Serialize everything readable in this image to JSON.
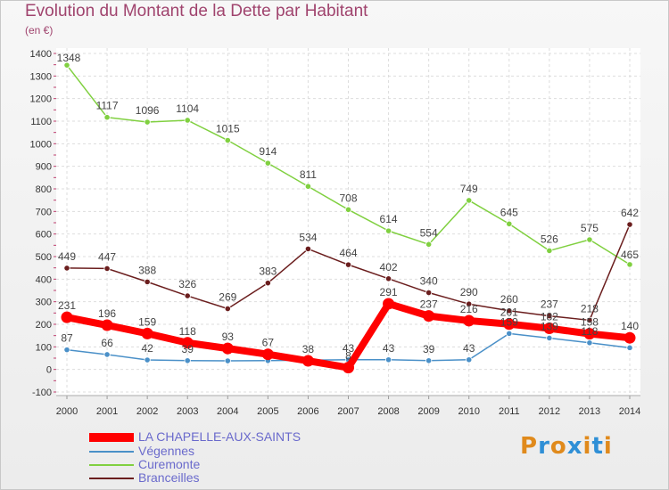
{
  "header": {
    "title": "Evolution du Montant de la Dette par Habitant",
    "subtitle": "(en €)"
  },
  "logo": {
    "text": "Proxiti",
    "colors": [
      "#e08a1c",
      "#2f8fd6",
      "#e08a1c",
      "#2f8fd6",
      "#e08a1c",
      "#2f8fd6",
      "#e08a1c"
    ]
  },
  "chart_data": {
    "type": "line",
    "x": [
      "2000",
      "2001",
      "2002",
      "2003",
      "2004",
      "2005",
      "2006",
      "2007",
      "2008",
      "2009",
      "2010",
      "2011",
      "2012",
      "2013",
      "2014"
    ],
    "ylim": [
      -100,
      1400
    ],
    "yticks": [
      -100,
      0,
      100,
      200,
      300,
      400,
      500,
      600,
      700,
      800,
      900,
      1000,
      1100,
      1200,
      1300,
      1400
    ],
    "grid": true,
    "legend_position": "bottom",
    "series": [
      {
        "name": "LA CHAPELLE-AUX-SAINTS",
        "color": "#ff0000",
        "values": [
          231,
          196,
          159,
          118,
          93,
          67,
          38,
          8,
          291,
          237,
          216,
          201,
          182,
          158,
          140
        ],
        "labels": [
          "231",
          "196",
          "159",
          "118",
          "93",
          "67",
          "38",
          "8",
          "291",
          "237",
          "216",
          "201",
          "182",
          "158",
          "140"
        ]
      },
      {
        "name": "Végennes",
        "color": "#4a90c8",
        "values": [
          87,
          66,
          42,
          39,
          38,
          39,
          41,
          43,
          43,
          39,
          43,
          159,
          139,
          118,
          96
        ],
        "labels": [
          "87",
          "66",
          "42",
          "39",
          "",
          "",
          "",
          "43",
          "43",
          "39",
          "43",
          "159",
          "139",
          "118",
          ""
        ]
      },
      {
        "name": "Curemonte",
        "color": "#80d040",
        "values": [
          1348,
          1117,
          1096,
          1104,
          1015,
          914,
          811,
          708,
          614,
          554,
          749,
          645,
          526,
          575,
          465
        ],
        "labels": [
          "1348",
          "1117",
          "1096",
          "1104",
          "1015",
          "914",
          "811",
          "708",
          "614",
          "554",
          "749",
          "645",
          "526",
          "575",
          "465"
        ]
      },
      {
        "name": "Branceilles",
        "color": "#6b1e1e",
        "values": [
          449,
          447,
          388,
          326,
          269,
          383,
          534,
          464,
          402,
          340,
          290,
          260,
          237,
          218,
          642
        ],
        "labels": [
          "449",
          "447",
          "388",
          "326",
          "269",
          "383",
          "534",
          "464",
          "402",
          "340",
          "290",
          "260",
          "237",
          "218",
          "642"
        ]
      }
    ]
  }
}
